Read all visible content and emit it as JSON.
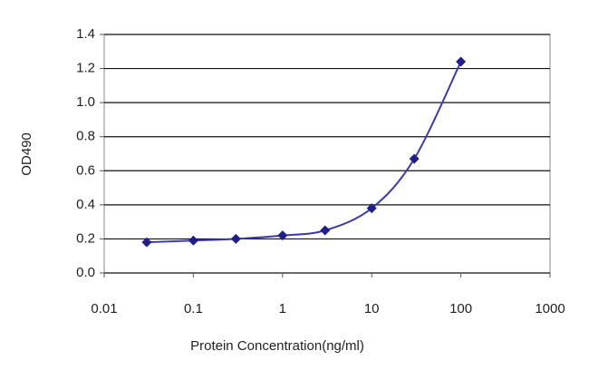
{
  "chart_data": {
    "type": "line",
    "x_label": "Protein Concentration(ng/ml)",
    "y_label": "OD490",
    "x": [
      0.03,
      0.1,
      0.3,
      1,
      3,
      10,
      30,
      100
    ],
    "series": [
      {
        "color": "#1e1e8c",
        "values": [
          0.18,
          0.19,
          0.2,
          0.22,
          0.25,
          0.38,
          0.67,
          1.24
        ]
      }
    ],
    "xlim": [
      0.01,
      1000
    ],
    "xticks": [
      0.01,
      0.1,
      1,
      10,
      100,
      1000
    ],
    "xlog": true,
    "ylim": [
      0,
      1.4
    ],
    "yticks": [
      {
        "value": 0,
        "label": "0.0"
      },
      0.2,
      0.4,
      0.6,
      0.8,
      {
        "value": 1,
        "label": "1.0"
      },
      1.2,
      1.4
    ],
    "grid": true
  }
}
